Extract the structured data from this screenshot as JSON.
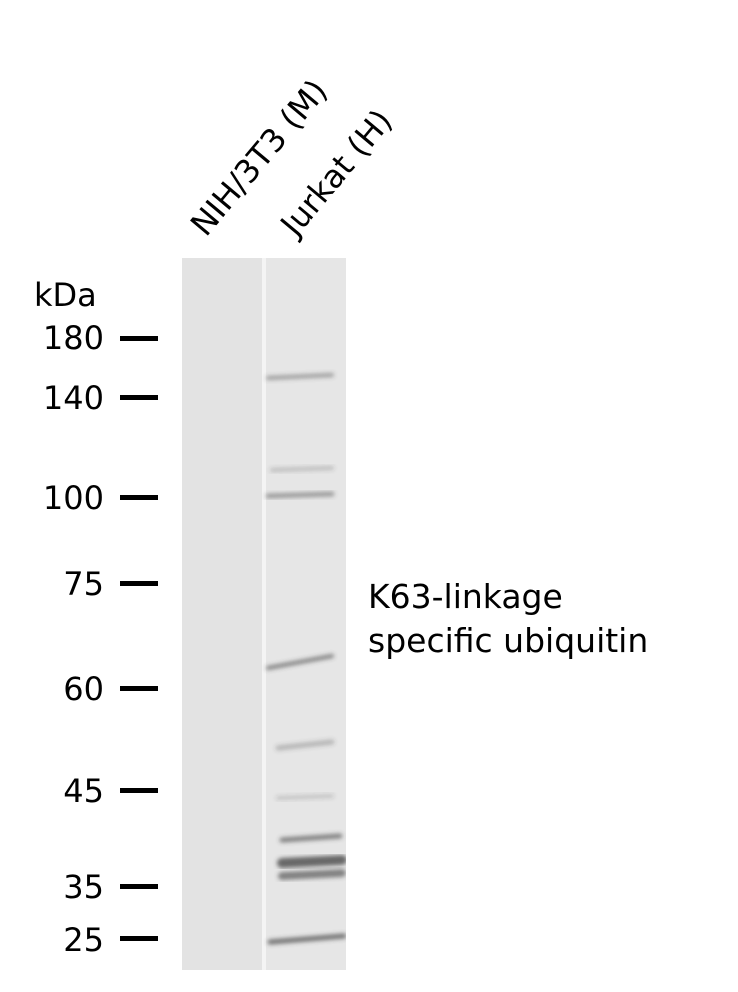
{
  "lanes": [
    {
      "label": "NIH/3T3 (M)"
    },
    {
      "label": "Jurkat (H)"
    }
  ],
  "marker_unit": "kDa",
  "markers": [
    "180",
    "140",
    "100",
    "75",
    "60",
    "45",
    "35",
    "25"
  ],
  "target": {
    "line1": "K63-linkage",
    "line2": "specific ubiquitin"
  },
  "colors": {
    "membrane": "#e9e9e9",
    "band": "#4a4a4a"
  }
}
